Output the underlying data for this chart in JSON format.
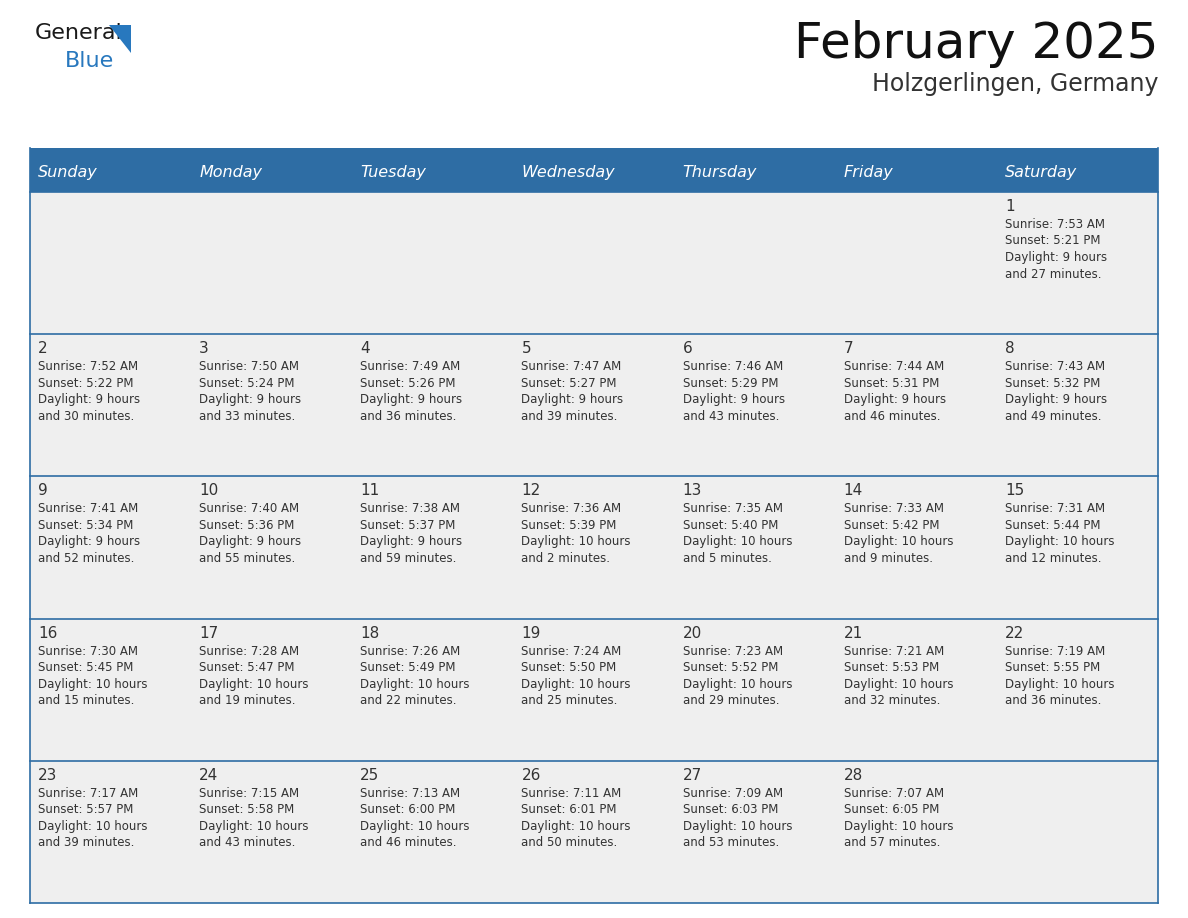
{
  "title": "February 2025",
  "subtitle": "Holzgerlingen, Germany",
  "header_bg": "#2E6DA4",
  "header_text": "#FFFFFF",
  "cell_bg": "#EFEFEF",
  "divider_color": "#2E6DA4",
  "text_color": "#333333",
  "days_of_week": [
    "Sunday",
    "Monday",
    "Tuesday",
    "Wednesday",
    "Thursday",
    "Friday",
    "Saturday"
  ],
  "weeks": [
    [
      {
        "day": null,
        "info": null
      },
      {
        "day": null,
        "info": null
      },
      {
        "day": null,
        "info": null
      },
      {
        "day": null,
        "info": null
      },
      {
        "day": null,
        "info": null
      },
      {
        "day": null,
        "info": null
      },
      {
        "day": 1,
        "info": "Sunrise: 7:53 AM\nSunset: 5:21 PM\nDaylight: 9 hours\nand 27 minutes."
      }
    ],
    [
      {
        "day": 2,
        "info": "Sunrise: 7:52 AM\nSunset: 5:22 PM\nDaylight: 9 hours\nand 30 minutes."
      },
      {
        "day": 3,
        "info": "Sunrise: 7:50 AM\nSunset: 5:24 PM\nDaylight: 9 hours\nand 33 minutes."
      },
      {
        "day": 4,
        "info": "Sunrise: 7:49 AM\nSunset: 5:26 PM\nDaylight: 9 hours\nand 36 minutes."
      },
      {
        "day": 5,
        "info": "Sunrise: 7:47 AM\nSunset: 5:27 PM\nDaylight: 9 hours\nand 39 minutes."
      },
      {
        "day": 6,
        "info": "Sunrise: 7:46 AM\nSunset: 5:29 PM\nDaylight: 9 hours\nand 43 minutes."
      },
      {
        "day": 7,
        "info": "Sunrise: 7:44 AM\nSunset: 5:31 PM\nDaylight: 9 hours\nand 46 minutes."
      },
      {
        "day": 8,
        "info": "Sunrise: 7:43 AM\nSunset: 5:32 PM\nDaylight: 9 hours\nand 49 minutes."
      }
    ],
    [
      {
        "day": 9,
        "info": "Sunrise: 7:41 AM\nSunset: 5:34 PM\nDaylight: 9 hours\nand 52 minutes."
      },
      {
        "day": 10,
        "info": "Sunrise: 7:40 AM\nSunset: 5:36 PM\nDaylight: 9 hours\nand 55 minutes."
      },
      {
        "day": 11,
        "info": "Sunrise: 7:38 AM\nSunset: 5:37 PM\nDaylight: 9 hours\nand 59 minutes."
      },
      {
        "day": 12,
        "info": "Sunrise: 7:36 AM\nSunset: 5:39 PM\nDaylight: 10 hours\nand 2 minutes."
      },
      {
        "day": 13,
        "info": "Sunrise: 7:35 AM\nSunset: 5:40 PM\nDaylight: 10 hours\nand 5 minutes."
      },
      {
        "day": 14,
        "info": "Sunrise: 7:33 AM\nSunset: 5:42 PM\nDaylight: 10 hours\nand 9 minutes."
      },
      {
        "day": 15,
        "info": "Sunrise: 7:31 AM\nSunset: 5:44 PM\nDaylight: 10 hours\nand 12 minutes."
      }
    ],
    [
      {
        "day": 16,
        "info": "Sunrise: 7:30 AM\nSunset: 5:45 PM\nDaylight: 10 hours\nand 15 minutes."
      },
      {
        "day": 17,
        "info": "Sunrise: 7:28 AM\nSunset: 5:47 PM\nDaylight: 10 hours\nand 19 minutes."
      },
      {
        "day": 18,
        "info": "Sunrise: 7:26 AM\nSunset: 5:49 PM\nDaylight: 10 hours\nand 22 minutes."
      },
      {
        "day": 19,
        "info": "Sunrise: 7:24 AM\nSunset: 5:50 PM\nDaylight: 10 hours\nand 25 minutes."
      },
      {
        "day": 20,
        "info": "Sunrise: 7:23 AM\nSunset: 5:52 PM\nDaylight: 10 hours\nand 29 minutes."
      },
      {
        "day": 21,
        "info": "Sunrise: 7:21 AM\nSunset: 5:53 PM\nDaylight: 10 hours\nand 32 minutes."
      },
      {
        "day": 22,
        "info": "Sunrise: 7:19 AM\nSunset: 5:55 PM\nDaylight: 10 hours\nand 36 minutes."
      }
    ],
    [
      {
        "day": 23,
        "info": "Sunrise: 7:17 AM\nSunset: 5:57 PM\nDaylight: 10 hours\nand 39 minutes."
      },
      {
        "day": 24,
        "info": "Sunrise: 7:15 AM\nSunset: 5:58 PM\nDaylight: 10 hours\nand 43 minutes."
      },
      {
        "day": 25,
        "info": "Sunrise: 7:13 AM\nSunset: 6:00 PM\nDaylight: 10 hours\nand 46 minutes."
      },
      {
        "day": 26,
        "info": "Sunrise: 7:11 AM\nSunset: 6:01 PM\nDaylight: 10 hours\nand 50 minutes."
      },
      {
        "day": 27,
        "info": "Sunrise: 7:09 AM\nSunset: 6:03 PM\nDaylight: 10 hours\nand 53 minutes."
      },
      {
        "day": 28,
        "info": "Sunrise: 7:07 AM\nSunset: 6:05 PM\nDaylight: 10 hours\nand 57 minutes."
      },
      {
        "day": null,
        "info": null
      }
    ]
  ],
  "logo_general_color": "#1a1a1a",
  "logo_blue_color": "#2878BE",
  "logo_triangle_color": "#2878BE"
}
